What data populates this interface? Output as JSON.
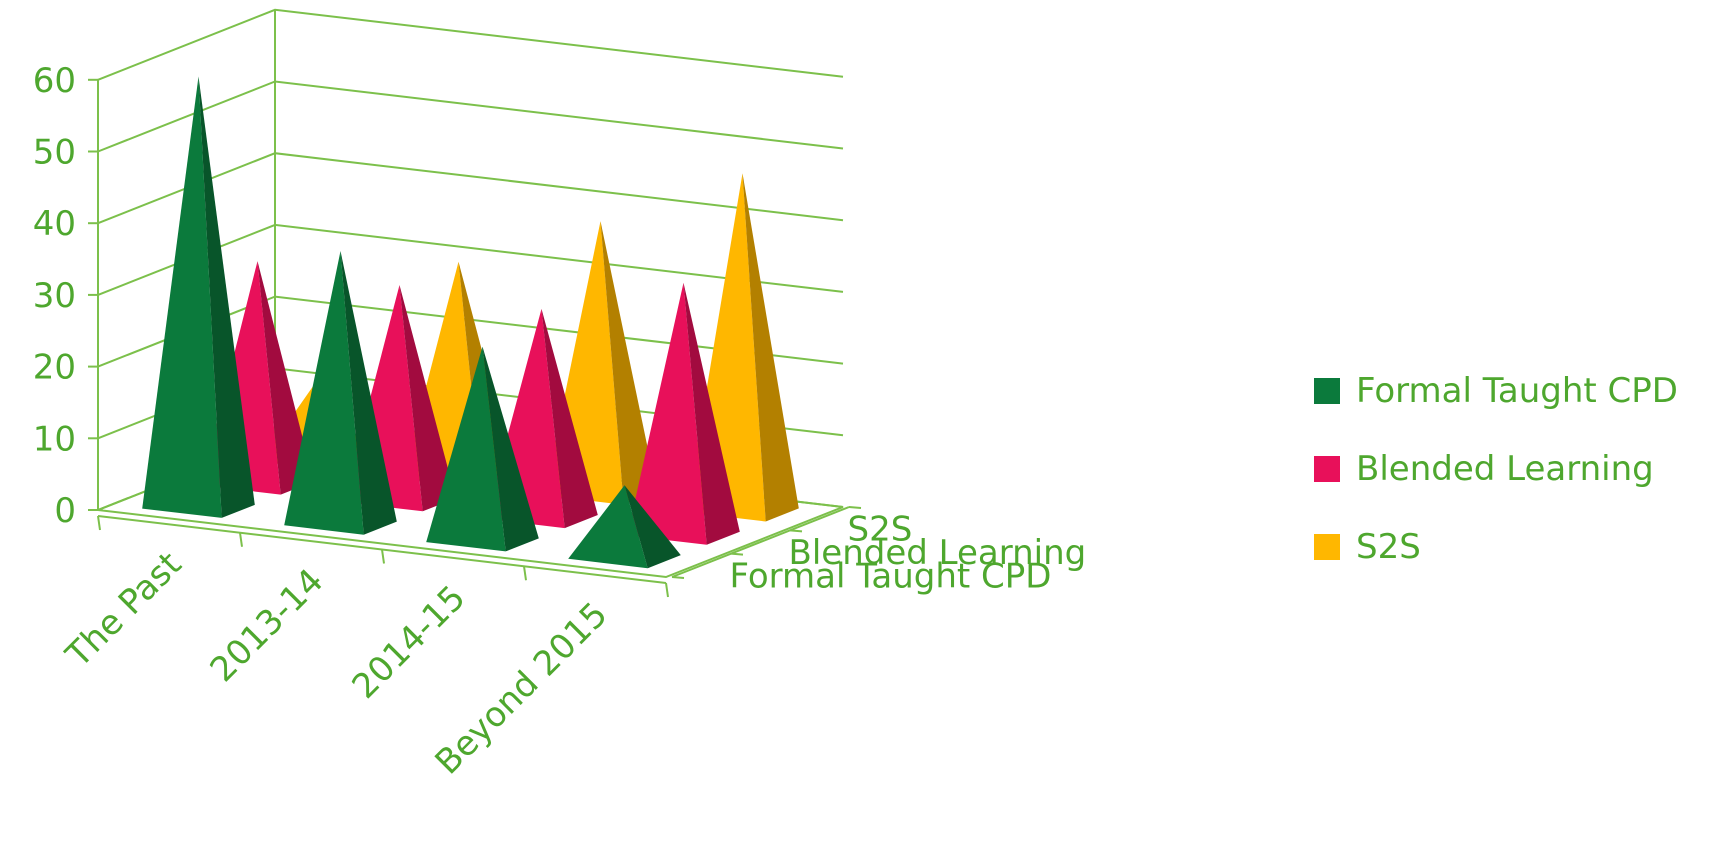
{
  "chart_data": {
    "type": "bar",
    "subtype": "3d-pyramid",
    "categories": [
      "The Past",
      "2013-14",
      "2014-15",
      "Beyond 2015"
    ],
    "series": [
      {
        "name": "Formal Taught CPD",
        "color": "#0b7a3c",
        "values": [
          60,
          38,
          27,
          10
        ]
      },
      {
        "name": "Blended Learning",
        "color": "#e8105a",
        "values": [
          31,
          30,
          29,
          35
        ]
      },
      {
        "name": "S2S",
        "color": "#ffb700",
        "values": [
          11,
          30,
          38,
          47
        ]
      }
    ],
    "ylim": [
      0,
      60
    ],
    "yticks": [
      "0",
      "10",
      "20",
      "30",
      "40",
      "50",
      "60"
    ],
    "depth_labels": [
      "Formal Taught CPD",
      "Blended Learning",
      "S2S"
    ],
    "grid": true,
    "legend": "right",
    "axis_color": "#7cc04b",
    "text_color": "#4ea72e"
  }
}
